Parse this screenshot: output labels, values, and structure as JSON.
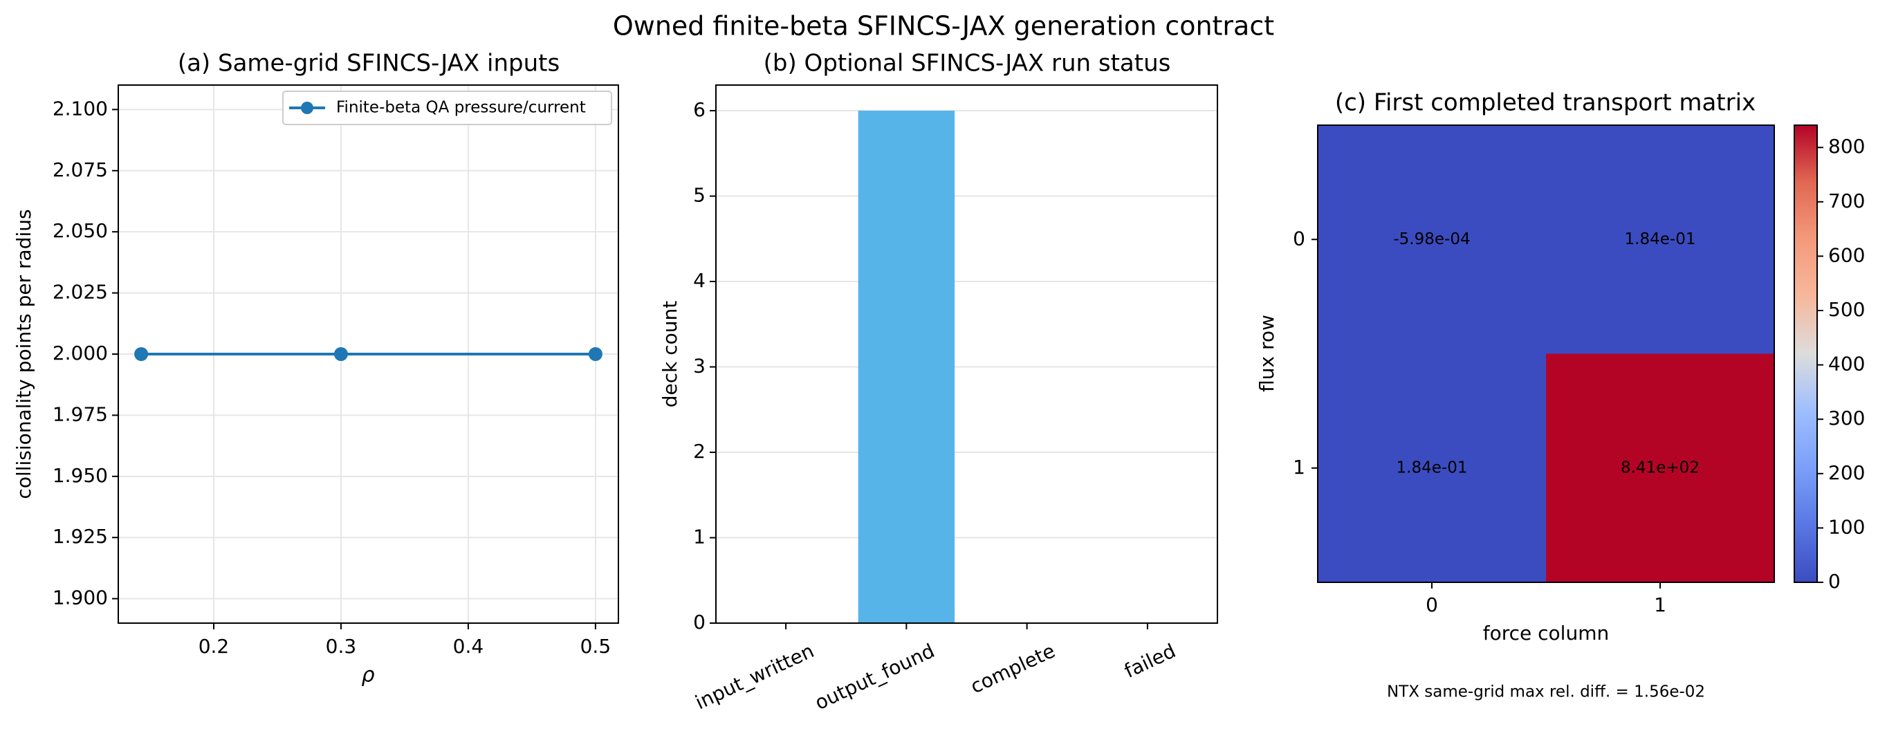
{
  "figure": {
    "suptitle": "Owned finite-beta SFINCS-JAX generation contract",
    "footnote": "NTX same-grid max rel. diff. = 1.56e-02"
  },
  "chart_data": [
    {
      "type": "line",
      "title": "(a) Same-grid SFINCS-JAX inputs",
      "xlabel": "ρ",
      "ylabel": "collisionality points per radius",
      "xlim": [
        0.125,
        0.518
      ],
      "ylim": [
        1.89,
        2.11
      ],
      "xticks": [
        0.2,
        0.3,
        0.4,
        0.5
      ],
      "xtick_labels": [
        "0.2",
        "0.3",
        "0.4",
        "0.5"
      ],
      "yticks": [
        1.9,
        1.925,
        1.95,
        1.975,
        2.0,
        2.025,
        2.05,
        2.075,
        2.1
      ],
      "ytick_labels": [
        "1.900",
        "1.925",
        "1.950",
        "1.975",
        "2.000",
        "2.025",
        "2.050",
        "2.075",
        "2.100"
      ],
      "grid": true,
      "legend_position": "top-right",
      "series": [
        {
          "name": "Finite-beta QA pressure/current",
          "color": "#1f77b4",
          "marker": "circle",
          "x": [
            0.143,
            0.3,
            0.5
          ],
          "y": [
            2.0,
            2.0,
            2.0
          ]
        }
      ]
    },
    {
      "type": "bar",
      "title": "(b) Optional SFINCS-JAX run status",
      "xlabel": "",
      "ylabel": "deck count",
      "categories": [
        "input_written",
        "output_found",
        "complete",
        "failed"
      ],
      "values": [
        0,
        6,
        0,
        0
      ],
      "bar_color": "#56B4E9",
      "ylim": [
        0,
        6.3
      ],
      "yticks": [
        0,
        1,
        2,
        3,
        4,
        5,
        6
      ],
      "ytick_labels": [
        "0",
        "1",
        "2",
        "3",
        "4",
        "5",
        "6"
      ],
      "grid": true
    },
    {
      "type": "heatmap",
      "title": "(c) First completed transport matrix",
      "xlabel": "force column",
      "ylabel": "flux row",
      "x_labels": [
        "0",
        "1"
      ],
      "y_labels": [
        "0",
        "1"
      ],
      "values": [
        [
          -0.000598,
          0.184
        ],
        [
          0.184,
          841
        ]
      ],
      "cell_labels": [
        [
          "-5.98e-04",
          "1.84e-01"
        ],
        [
          "1.84e-01",
          "8.41e+02"
        ]
      ],
      "colormap": "coolwarm",
      "vmin": 0,
      "vmax": 841,
      "colorbar_ticks": [
        0,
        100,
        200,
        300,
        400,
        500,
        600,
        700,
        800
      ],
      "colorbar_tick_labels": [
        "0",
        "100",
        "200",
        "300",
        "400",
        "500",
        "600",
        "700",
        "800"
      ]
    }
  ]
}
